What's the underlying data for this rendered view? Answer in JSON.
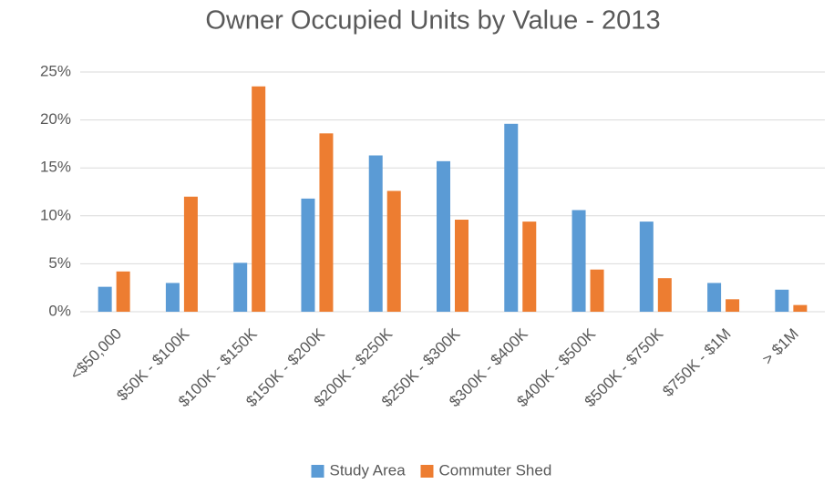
{
  "chart_data": {
    "type": "bar",
    "title": "Owner Occupied Units by Value - 2013",
    "categories": [
      "<$50,000",
      "$50K - $100K",
      "$100K - $150K",
      "$150K - $200K",
      "$200K - $250K",
      "$250K - $300K",
      "$300K - $400K",
      "$400K - $500K",
      "$500K - $750K",
      "$750K - $1M",
      "> $1M"
    ],
    "series": [
      {
        "name": "Study Area",
        "color": "#5b9bd5",
        "values": [
          2.6,
          3.0,
          5.1,
          11.8,
          16.3,
          15.7,
          19.6,
          10.6,
          9.4,
          3.0,
          2.3
        ]
      },
      {
        "name": "Commuter Shed",
        "color": "#ed7d31",
        "values": [
          4.2,
          12.0,
          23.5,
          18.6,
          12.6,
          9.6,
          9.4,
          4.4,
          3.5,
          1.3,
          0.7
        ]
      }
    ],
    "ylim": [
      0,
      25
    ],
    "yticks": [
      {
        "value": 0,
        "label": "0%"
      },
      {
        "value": 5,
        "label": "5%"
      },
      {
        "value": 10,
        "label": "10%"
      },
      {
        "value": 15,
        "label": "15%"
      },
      {
        "value": 20,
        "label": "20%"
      },
      {
        "value": 25,
        "label": "25%"
      }
    ],
    "grid": true,
    "legend": "bottom"
  }
}
